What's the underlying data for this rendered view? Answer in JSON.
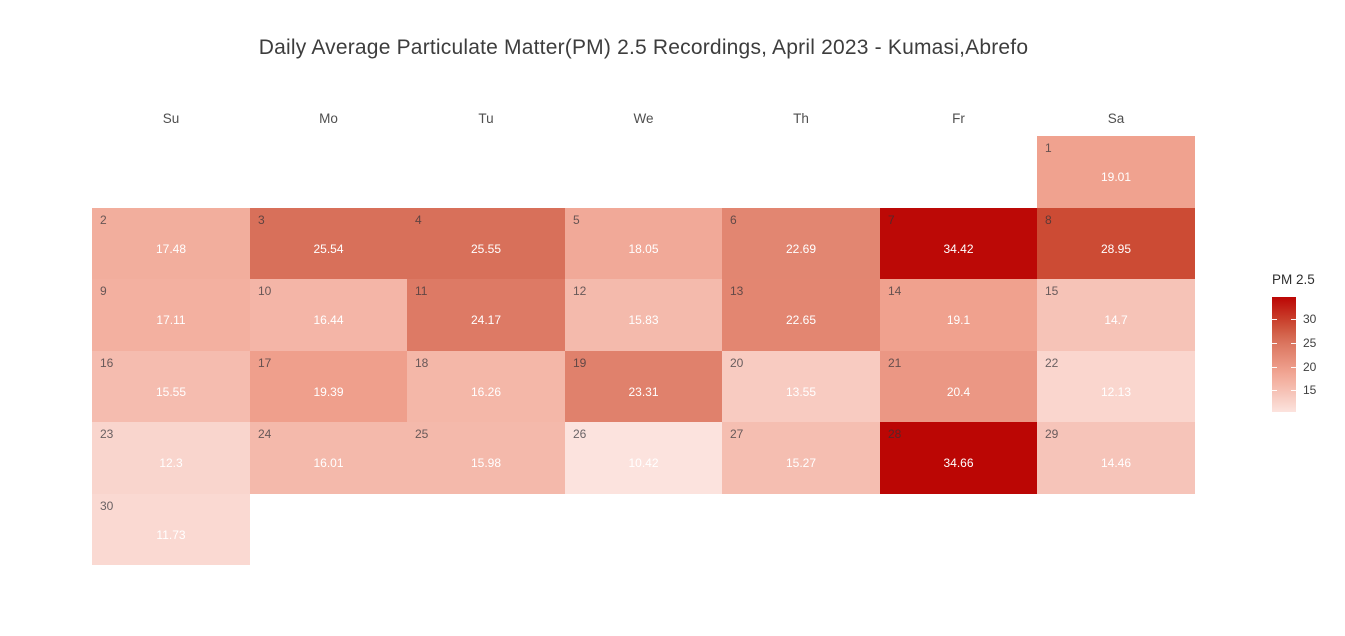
{
  "title": "Daily Average Particulate Matter(PM) 2.5 Recordings, April 2023 - Kumasi,Abrefo",
  "weekdays": [
    "Su",
    "Mo",
    "Tu",
    "We",
    "Th",
    "Fr",
    "Sa"
  ],
  "chart_data": {
    "type": "heatmap",
    "subtype": "calendar-month",
    "month": "April 2023",
    "location": "Kumasi,Abrefo",
    "metric": "PM 2.5",
    "first_day_weekday": "Sa",
    "days": [
      {
        "day": 1,
        "value": 19.01
      },
      {
        "day": 2,
        "value": 17.48
      },
      {
        "day": 3,
        "value": 25.54
      },
      {
        "day": 4,
        "value": 25.55
      },
      {
        "day": 5,
        "value": 18.05
      },
      {
        "day": 6,
        "value": 22.69
      },
      {
        "day": 7,
        "value": 34.42
      },
      {
        "day": 8,
        "value": 28.95
      },
      {
        "day": 9,
        "value": 17.11
      },
      {
        "day": 10,
        "value": 16.44
      },
      {
        "day": 11,
        "value": 24.17
      },
      {
        "day": 12,
        "value": 15.83
      },
      {
        "day": 13,
        "value": 22.65
      },
      {
        "day": 14,
        "value": 19.1
      },
      {
        "day": 15,
        "value": 14.7
      },
      {
        "day": 16,
        "value": 15.55
      },
      {
        "day": 17,
        "value": 19.39
      },
      {
        "day": 18,
        "value": 16.26
      },
      {
        "day": 19,
        "value": 23.31
      },
      {
        "day": 20,
        "value": 13.55
      },
      {
        "day": 21,
        "value": 20.4
      },
      {
        "day": 22,
        "value": 12.13
      },
      {
        "day": 23,
        "value": 12.3
      },
      {
        "day": 24,
        "value": 16.01
      },
      {
        "day": 25,
        "value": 15.98
      },
      {
        "day": 26,
        "value": 10.42
      },
      {
        "day": 27,
        "value": 15.27
      },
      {
        "day": 28,
        "value": 34.66
      },
      {
        "day": 29,
        "value": 14.46
      },
      {
        "day": 30,
        "value": 11.73
      }
    ],
    "colorbar": {
      "title": "PM 2.5",
      "tick_labels": [
        30,
        25,
        20,
        15
      ],
      "min": 10.42,
      "max": 34.66,
      "orientation": "vertical",
      "position": "right"
    },
    "colorscale": [
      {
        "value": 10.42,
        "color": "#fce3de"
      },
      {
        "value": 19.01,
        "color": "#f0a28f"
      },
      {
        "value": 25.54,
        "color": "#d8705a"
      },
      {
        "value": 28.95,
        "color": "#cc4b34"
      },
      {
        "value": 34.66,
        "color": "#bb0604"
      }
    ]
  },
  "colors": {
    "background": "#ffffff",
    "title_text": "#3d3d3d",
    "weekday_text": "#4f4f4f",
    "day_number_text": "rgba(48,50,56,0.72)",
    "value_text": "#ffffff",
    "tick_text": "#404040"
  }
}
